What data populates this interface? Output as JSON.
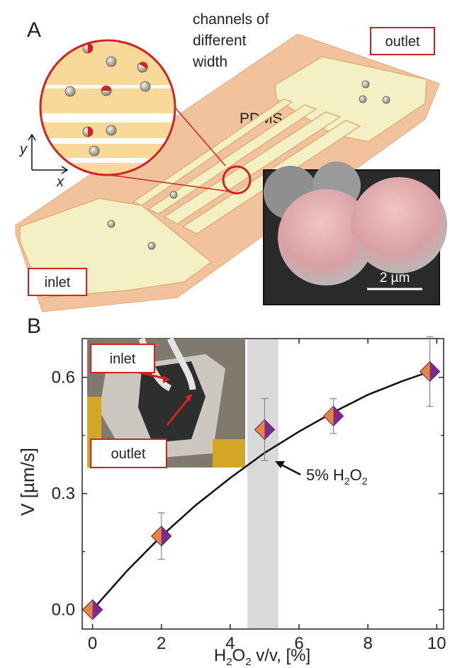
{
  "panel_a": {
    "label": "A",
    "zoom_caption": [
      "channels of",
      "different",
      "width"
    ],
    "material_label": "PDMS",
    "inlet_label": "inlet",
    "outlet_label": "outlet",
    "axis_y": "y",
    "axis_x": "x",
    "scale_bar_label": "2 µm"
  },
  "panel_b": {
    "label": "B",
    "photo_inlet_label": "inlet",
    "photo_outlet_label": "outlet",
    "annotation": {
      "prefix": "5% H",
      "sub1": "2",
      "mid": "O",
      "sub2": "2"
    },
    "xlabel": {
      "prefix": "H",
      "sub1": "2",
      "mid": "O",
      "sub2": "2",
      "suffix": " v/v, [%]"
    },
    "ylabel": "V [µm/s]"
  },
  "chart_data": {
    "type": "scatter",
    "x": [
      0,
      2,
      5,
      7,
      9.8
    ],
    "y": [
      0.0,
      0.19,
      0.465,
      0.5,
      0.615
    ],
    "yerr": [
      0.0,
      0.06,
      0.08,
      0.045,
      0.09
    ],
    "fit_curve": {
      "x": [
        0,
        1,
        2,
        3,
        4,
        5,
        6,
        7,
        8,
        9,
        9.8
      ],
      "y": [
        0.0,
        0.1,
        0.19,
        0.27,
        0.34,
        0.405,
        0.46,
        0.51,
        0.555,
        0.59,
        0.615
      ]
    },
    "highlight_band_x": [
      4.5,
      5.4
    ],
    "xlim": [
      -0.3,
      10.2
    ],
    "ylim": [
      -0.05,
      0.7
    ],
    "xticks": [
      "0",
      "2",
      "4",
      "6",
      "8",
      "10"
    ],
    "yticks": [
      "0.0",
      "0.3",
      "0.6"
    ],
    "marker_colors": {
      "left": "#e8853a",
      "right": "#7b2d8e"
    },
    "fit_color": "#111111",
    "band_color": "#d9d9d9"
  }
}
